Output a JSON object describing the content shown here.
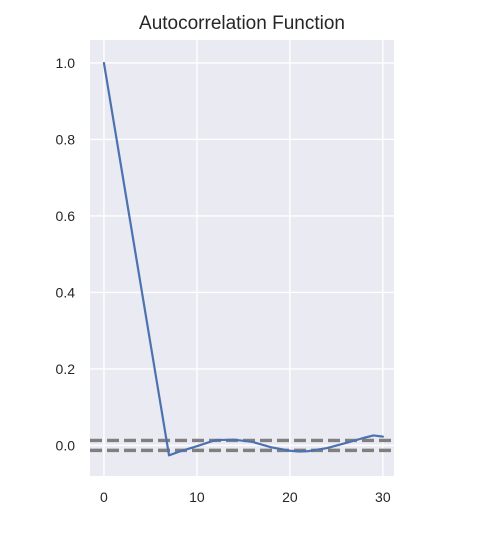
{
  "chart_data": {
    "type": "line",
    "title": "Autocorrelation Function",
    "xlabel": "",
    "ylabel": "",
    "xlim": [
      -1.5,
      31.2
    ],
    "ylim": [
      -0.08,
      1.06
    ],
    "grid": true,
    "legend": "none",
    "x_ticks": [
      0,
      10,
      20,
      30
    ],
    "x_tick_labels": [
      "0",
      "10",
      "20",
      "30"
    ],
    "y_ticks": [
      0.0,
      0.2,
      0.4,
      0.6,
      0.8,
      1.0
    ],
    "y_tick_labels": [
      "0.0",
      "0.2",
      "0.4",
      "0.6",
      "0.8",
      "1.0"
    ],
    "series": [
      {
        "x": [
          0,
          7,
          8,
          10,
          12,
          14,
          16,
          18,
          20,
          21,
          22,
          24,
          26,
          28,
          29,
          30
        ],
        "values": [
          1.0,
          -0.026,
          -0.017,
          -0.002,
          0.014,
          0.015,
          0.009,
          -0.005,
          -0.014,
          -0.016,
          -0.015,
          -0.007,
          0.006,
          0.02,
          0.026,
          0.023
        ]
      }
    ],
    "reference_lines": [
      0.013,
      -0.013
    ],
    "colors": {
      "line": "#4c72b0",
      "reference": "#808080",
      "plot_background": "#eaeaf2",
      "grid": "#ffffff",
      "text": "#262626"
    }
  }
}
